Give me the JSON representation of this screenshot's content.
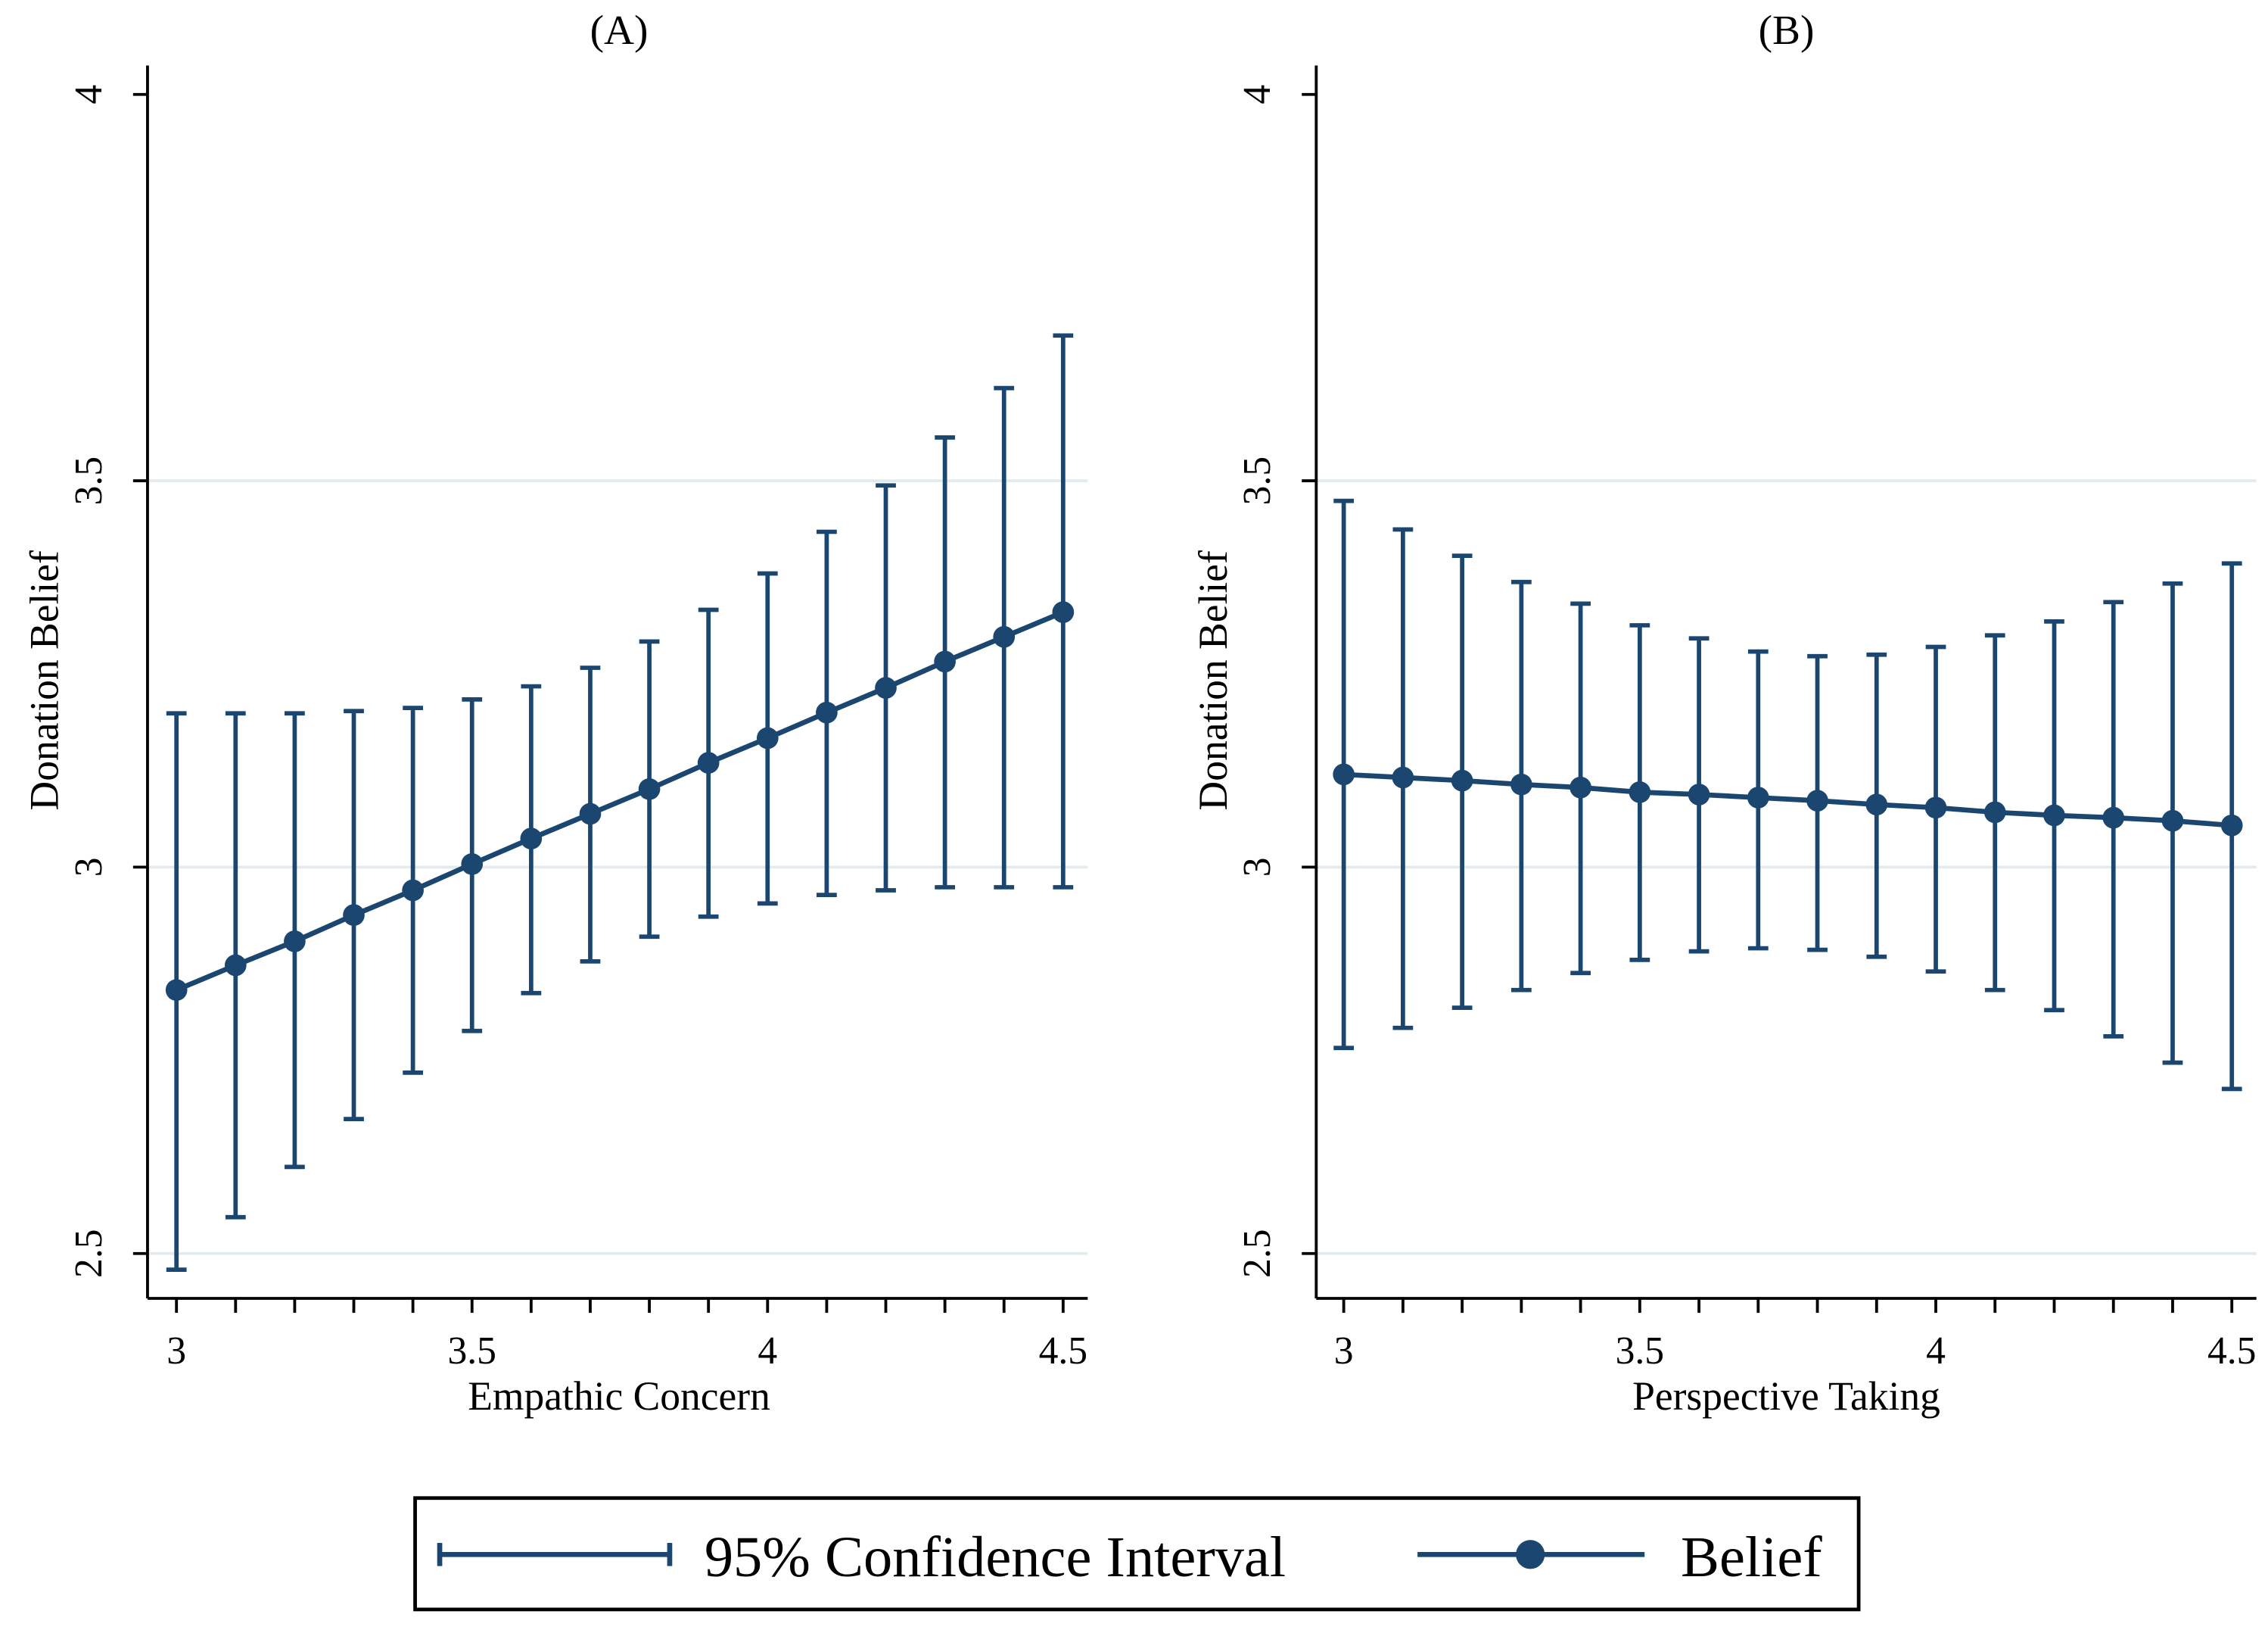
{
  "colors": {
    "series": "#1a4670",
    "grid": "#e3ebee",
    "axis": "#000000"
  },
  "chart_data": [
    {
      "type": "line",
      "title": "(A)",
      "xlabel": "Empathic Concern",
      "ylabel": "Donation Belief",
      "xlim": [
        3,
        4.5
      ],
      "ylim": [
        2.44,
        4.04
      ],
      "xticks": [
        3,
        3.5,
        4,
        4.5
      ],
      "xtick_labels": [
        "3",
        "3.5",
        "4",
        "4.5"
      ],
      "yticks": [
        2.5,
        3,
        3.5,
        4
      ],
      "ytick_labels": [
        "2.5",
        "3",
        "3.5",
        "4"
      ],
      "grid": true,
      "x": [
        3.0,
        3.1,
        3.2,
        3.3,
        3.4,
        3.5,
        3.6,
        3.7,
        3.8,
        3.9,
        4.0,
        4.1,
        4.2,
        4.3,
        4.4,
        4.5
      ],
      "belief": [
        2.841,
        2.873,
        2.904,
        2.938,
        2.97,
        3.004,
        3.037,
        3.069,
        3.101,
        3.135,
        3.167,
        3.2,
        3.232,
        3.266,
        3.298,
        3.33
      ],
      "ci_upper": [
        3.199,
        3.199,
        3.199,
        3.202,
        3.206,
        3.217,
        3.234,
        3.258,
        3.292,
        3.333,
        3.38,
        3.434,
        3.494,
        3.556,
        3.62,
        3.688
      ],
      "ci_lower": [
        2.479,
        2.547,
        2.612,
        2.674,
        2.734,
        2.788,
        2.837,
        2.878,
        2.91,
        2.936,
        2.953,
        2.964,
        2.97,
        2.974,
        2.974,
        2.974
      ]
    },
    {
      "type": "line",
      "title": "(B)",
      "xlabel": "Perspective Taking",
      "ylabel": "Donation Belief",
      "xlim": [
        3,
        4.5
      ],
      "ylim": [
        2.44,
        4.04
      ],
      "xticks": [
        3,
        3.5,
        4,
        4.5
      ],
      "xtick_labels": [
        "3",
        "3.5",
        "4",
        "4.5"
      ],
      "yticks": [
        2.5,
        3,
        3.5,
        4
      ],
      "ytick_labels": [
        "2.5",
        "3",
        "3.5",
        "4"
      ],
      "grid": true,
      "x": [
        3.0,
        3.1,
        3.2,
        3.3,
        3.4,
        3.5,
        3.6,
        3.7,
        3.8,
        3.9,
        4.0,
        4.1,
        4.2,
        4.3,
        4.4,
        4.5
      ],
      "belief": [
        3.12,
        3.116,
        3.112,
        3.107,
        3.103,
        3.097,
        3.094,
        3.09,
        3.086,
        3.081,
        3.077,
        3.071,
        3.067,
        3.064,
        3.06,
        3.054
      ],
      "ci_upper": [
        3.474,
        3.437,
        3.403,
        3.369,
        3.341,
        3.313,
        3.296,
        3.279,
        3.273,
        3.275,
        3.285,
        3.3,
        3.318,
        3.343,
        3.367,
        3.393
      ],
      "ci_lower": [
        2.766,
        2.792,
        2.818,
        2.841,
        2.863,
        2.88,
        2.891,
        2.895,
        2.893,
        2.884,
        2.865,
        2.841,
        2.815,
        2.781,
        2.747,
        2.713
      ]
    }
  ],
  "legend": {
    "placement": "bottom-center",
    "entries": [
      "95% Confidence Interval",
      "Belief"
    ]
  }
}
